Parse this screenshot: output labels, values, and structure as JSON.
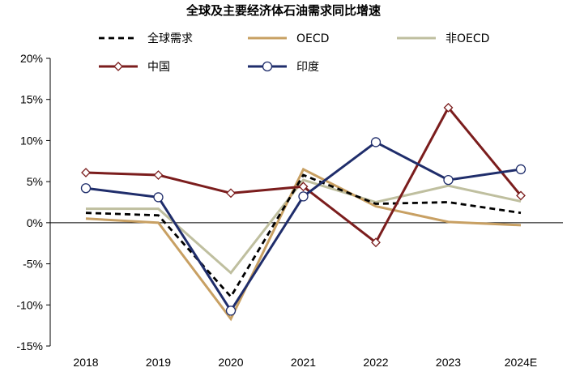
{
  "chart_data": {
    "type": "line",
    "title": "全球及主要经济体石油需求同比增速",
    "categories": [
      "2018",
      "2019",
      "2020",
      "2021",
      "2022",
      "2023",
      "2024E"
    ],
    "y_tick_labels": [
      "20%",
      "15%",
      "10%",
      "5%",
      "0%",
      "-5%",
      "-10%",
      "-15%"
    ],
    "ylim": [
      -15,
      20
    ],
    "xlabel": "",
    "ylabel": "",
    "grid": false,
    "legend_position": "top",
    "series": [
      {
        "name": "全球需求",
        "values": [
          1.2,
          0.9,
          -9.0,
          5.8,
          2.3,
          2.5,
          1.2
        ],
        "color": "#000000",
        "dash": true,
        "marker": "none"
      },
      {
        "name": "OECD",
        "values": [
          0.5,
          0.0,
          -11.7,
          6.5,
          2.0,
          0.1,
          -0.3
        ],
        "color": "#C8A063",
        "dash": false,
        "marker": "none"
      },
      {
        "name": "非OECD",
        "values": [
          1.7,
          1.7,
          -6.1,
          5.2,
          2.5,
          4.5,
          2.6
        ],
        "color": "#BFBF9F",
        "dash": false,
        "marker": "none"
      },
      {
        "name": "中国",
        "values": [
          6.1,
          5.8,
          3.6,
          4.4,
          -2.4,
          14.0,
          3.3
        ],
        "color": "#7B1D1D",
        "dash": false,
        "marker": "diamond"
      },
      {
        "name": "印度",
        "values": [
          4.2,
          3.1,
          -10.7,
          3.2,
          9.8,
          5.2,
          6.5
        ],
        "color": "#1F2D6B",
        "dash": false,
        "marker": "circle"
      }
    ]
  }
}
